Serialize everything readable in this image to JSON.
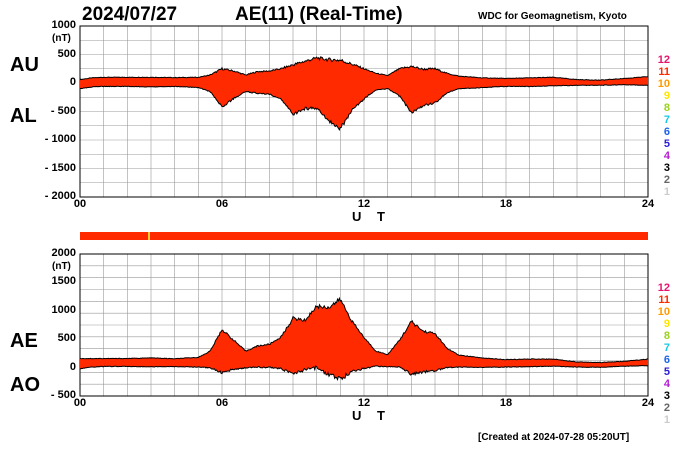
{
  "header": {
    "date": "2024/07/27",
    "title": "AE(11) (Real-Time)",
    "org": "WDC for Geomagnetism, Kyoto",
    "created": "[Created at 2024-07-28 05:20UT]"
  },
  "legend": {
    "items": [
      {
        "label": "12",
        "color": "#e5166e"
      },
      {
        "label": "11",
        "color": "#ff2a00"
      },
      {
        "label": "10",
        "color": "#ff9b00"
      },
      {
        "label": "9",
        "color": "#ffe600"
      },
      {
        "label": "8",
        "color": "#9bd21e"
      },
      {
        "label": "7",
        "color": "#17c8e6"
      },
      {
        "label": "6",
        "color": "#1e64e6"
      },
      {
        "label": "5",
        "color": "#2a1ed2"
      },
      {
        "label": "4",
        "color": "#b41ed2"
      },
      {
        "label": "3",
        "color": "#000000"
      },
      {
        "label": "2",
        "color": "#666666"
      },
      {
        "label": "1",
        "color": "#cccccc"
      }
    ]
  },
  "colors": {
    "fill": "#ff2a00",
    "line": "#000000",
    "grid": "#999999",
    "bar": "#ff2a00",
    "bar_mark": "#ffcc33"
  },
  "chart_data": [
    {
      "type": "area",
      "title": "AU / AL",
      "labels": [
        "AU",
        "AL"
      ],
      "unit": "(nT)",
      "xlabel": "U T",
      "xticks": [
        "00",
        "06",
        "12",
        "18",
        "24"
      ],
      "yticks": [
        "1000",
        "500",
        "0",
        "- 500",
        "- 1000",
        "- 1500",
        "- 2000"
      ],
      "xlim": [
        0,
        24
      ],
      "ylim": [
        -2000,
        1000
      ],
      "series": [
        {
          "name": "AU",
          "x": [
            0,
            0.5,
            1,
            2,
            3,
            4,
            5,
            5.5,
            6,
            6.5,
            7,
            7.5,
            8,
            8.5,
            9,
            9.5,
            10,
            10.5,
            11,
            11.5,
            12,
            12.5,
            13,
            13.5,
            14,
            14.5,
            15,
            15.5,
            16,
            17,
            18,
            19,
            20,
            21,
            22,
            23,
            24
          ],
          "values": [
            60,
            90,
            100,
            100,
            100,
            95,
            100,
            140,
            250,
            210,
            140,
            200,
            210,
            250,
            320,
            380,
            440,
            410,
            400,
            330,
            250,
            170,
            130,
            250,
            290,
            240,
            250,
            170,
            120,
            90,
            80,
            90,
            100,
            60,
            50,
            80,
            110
          ]
        },
        {
          "name": "AL",
          "x": [
            0,
            0.5,
            1,
            2,
            3,
            4,
            5,
            5.5,
            6,
            6.5,
            7,
            7.5,
            8,
            8.5,
            9,
            9.5,
            10,
            10.5,
            11,
            11.5,
            12,
            12.5,
            13,
            13.5,
            14,
            14.5,
            15,
            15.5,
            16,
            17,
            18,
            19,
            20,
            21,
            22,
            23,
            24
          ],
          "values": [
            -100,
            -70,
            -60,
            -60,
            -70,
            -60,
            -80,
            -150,
            -420,
            -270,
            -150,
            -180,
            -200,
            -290,
            -550,
            -450,
            -440,
            -650,
            -800,
            -480,
            -280,
            -120,
            -100,
            -230,
            -520,
            -400,
            -350,
            -170,
            -100,
            -80,
            -60,
            -60,
            -50,
            -40,
            -40,
            -30,
            -40
          ]
        }
      ]
    },
    {
      "type": "area",
      "title": "AE / AO",
      "labels": [
        "AE",
        "AO"
      ],
      "unit": "(nT)",
      "xlabel": "U T",
      "xticks": [
        "00",
        "06",
        "12",
        "18",
        "24"
      ],
      "yticks": [
        "2000",
        "1500",
        "1000",
        "500",
        "0",
        "- 500"
      ],
      "xlim": [
        0,
        24
      ],
      "ylim": [
        -500,
        2000
      ],
      "series": [
        {
          "name": "AE",
          "x": [
            0,
            0.5,
            1,
            2,
            3,
            4,
            5,
            5.5,
            6,
            6.5,
            7,
            7.5,
            8,
            8.5,
            9,
            9.5,
            10,
            10.5,
            11,
            11.5,
            12,
            12.5,
            13,
            13.5,
            14,
            14.5,
            15,
            15.5,
            16,
            17,
            18,
            19,
            20,
            21,
            22,
            23,
            24
          ],
          "values": [
            160,
            160,
            160,
            160,
            170,
            155,
            180,
            290,
            670,
            480,
            290,
            380,
            410,
            540,
            870,
            830,
            1080,
            1060,
            1200,
            810,
            530,
            290,
            230,
            480,
            810,
            640,
            600,
            340,
            220,
            170,
            140,
            150,
            150,
            100,
            90,
            110,
            150
          ]
        },
        {
          "name": "AO",
          "x": [
            0,
            0.5,
            1,
            2,
            3,
            4,
            5,
            5.5,
            6,
            6.5,
            7,
            7.5,
            8,
            8.5,
            9,
            9.5,
            10,
            10.5,
            11,
            11.5,
            12,
            12.5,
            13,
            13.5,
            14,
            14.5,
            15,
            15.5,
            16,
            17,
            18,
            19,
            20,
            21,
            22,
            23,
            24
          ],
          "values": [
            -20,
            10,
            20,
            20,
            15,
            18,
            10,
            -5,
            -85,
            -30,
            -5,
            10,
            5,
            -20,
            -115,
            -35,
            0,
            -120,
            -200,
            -75,
            -15,
            25,
            15,
            10,
            -115,
            -80,
            -50,
            0,
            10,
            5,
            10,
            15,
            25,
            10,
            5,
            25,
            35
          ]
        }
      ]
    }
  ]
}
